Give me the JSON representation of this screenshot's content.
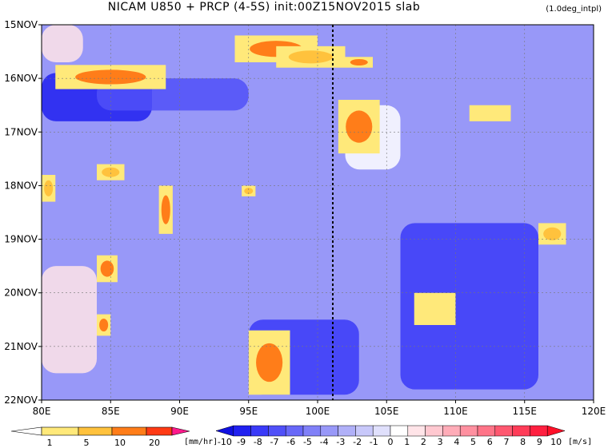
{
  "title": "NICAM   U850  +  PRCP (4-5S)  init:00Z15NOV2015  slab",
  "subtitle": "(1.0deg_intpl)",
  "chart_data": {
    "type": "heatmap",
    "title": "NICAM   U850  +  PRCP (4-5S)  init:00Z15NOV2015  slab",
    "x_axis": {
      "label": "",
      "range": [
        80,
        120
      ],
      "ticks": [
        "80E",
        "85E",
        "90E",
        "95E",
        "100E",
        "105E",
        "110E",
        "115E",
        "120E"
      ],
      "tick_values": [
        80,
        85,
        90,
        95,
        100,
        105,
        110,
        115,
        120
      ]
    },
    "y_axis": {
      "label": "",
      "range": [
        "15NOV",
        "22NOV"
      ],
      "ticks": [
        "15NOV",
        "16NOV",
        "17NOV",
        "18NOV",
        "19NOV",
        "20NOV",
        "21NOV",
        "22NOV"
      ]
    },
    "grid": true,
    "reference_line_lon": 101.1,
    "u850_background": {
      "note": "zonal wind at 850hPa, m/s (shaded blue-red)",
      "regions": [
        {
          "lon": [
            80,
            88
          ],
          "day": [
            15.9,
            16.8
          ],
          "value": -9
        },
        {
          "lon": [
            84,
            95
          ],
          "day": [
            16.0,
            16.6
          ],
          "value": -7
        },
        {
          "lon": [
            103,
            120
          ],
          "day": [
            15.2,
            16.2
          ],
          "value": -4
        },
        {
          "lon": [
            102,
            106
          ],
          "day": [
            16.5,
            17.7
          ],
          "value": 0
        },
        {
          "lon": [
            106,
            116
          ],
          "day": [
            18.7,
            21.8
          ],
          "value": -8
        },
        {
          "lon": [
            95,
            103
          ],
          "day": [
            20.5,
            21.9
          ],
          "value": -8
        },
        {
          "lon": [
            80,
            84
          ],
          "day": [
            19.5,
            21.5
          ],
          "value": 1
        },
        {
          "lon": [
            80,
            83
          ],
          "day": [
            15.0,
            15.7
          ],
          "value": 1
        }
      ],
      "default": -4
    },
    "precip_clusters": [
      {
        "lon": [
          81,
          89
        ],
        "day": [
          15.75,
          16.2
        ],
        "intensity": 10
      },
      {
        "lon": [
          94,
          100
        ],
        "day": [
          15.2,
          15.7
        ],
        "intensity": 10
      },
      {
        "lon": [
          97,
          102
        ],
        "day": [
          15.4,
          15.8
        ],
        "intensity": 5
      },
      {
        "lon": [
          102,
          104
        ],
        "day": [
          15.6,
          15.8
        ],
        "intensity": 10
      },
      {
        "lon": [
          101.5,
          104.5
        ],
        "day": [
          16.4,
          17.4
        ],
        "intensity": 10
      },
      {
        "lon": [
          80,
          81
        ],
        "day": [
          17.8,
          18.3
        ],
        "intensity": 5
      },
      {
        "lon": [
          84,
          86
        ],
        "day": [
          17.6,
          17.9
        ],
        "intensity": 5
      },
      {
        "lon": [
          88.5,
          89.5
        ],
        "day": [
          18.0,
          18.9
        ],
        "intensity": 10
      },
      {
        "lon": [
          94.5,
          95.5
        ],
        "day": [
          18.0,
          18.2
        ],
        "intensity": 5
      },
      {
        "lon": [
          84,
          85.5
        ],
        "day": [
          19.3,
          19.8
        ],
        "intensity": 10
      },
      {
        "lon": [
          84,
          85
        ],
        "day": [
          20.4,
          20.8
        ],
        "intensity": 10
      },
      {
        "lon": [
          95,
          98
        ],
        "day": [
          20.7,
          21.9
        ],
        "intensity": 10
      },
      {
        "lon": [
          116,
          118
        ],
        "day": [
          18.7,
          19.1
        ],
        "intensity": 5
      },
      {
        "lon": [
          107,
          110
        ],
        "day": [
          20.0,
          20.6
        ],
        "intensity": 1
      },
      {
        "lon": [
          111,
          114
        ],
        "day": [
          16.5,
          16.8
        ],
        "intensity": 1
      }
    ]
  },
  "colorbar_precip": {
    "labels": [
      "1",
      "5",
      "10",
      "20"
    ],
    "unit": "[mm/hr]",
    "colors": [
      "#ffffff",
      "#ffe97a",
      "#ffc23d",
      "#ff7d19",
      "#ff3a14",
      "#ff1a8c"
    ]
  },
  "colorbar_wind": {
    "labels": [
      "-10",
      "-9",
      "-8",
      "-7",
      "-6",
      "-5",
      "-4",
      "-3",
      "-2",
      "-1",
      "0",
      "1",
      "2",
      "3",
      "4",
      "5",
      "6",
      "7",
      "8",
      "9",
      "10"
    ],
    "unit": "[m/s]",
    "colors": [
      "#1010e0",
      "#2020f0",
      "#3a3af8",
      "#5050f8",
      "#6868f8",
      "#8080f8",
      "#9898f8",
      "#b0b0f8",
      "#c8c8fa",
      "#e0e0fc",
      "#ffffff",
      "#ffe4e8",
      "#ffc8d0",
      "#ffacb8",
      "#ff90a0",
      "#ff7488",
      "#ff5870",
      "#ff3c58",
      "#ff2040",
      "#ff1028"
    ]
  }
}
